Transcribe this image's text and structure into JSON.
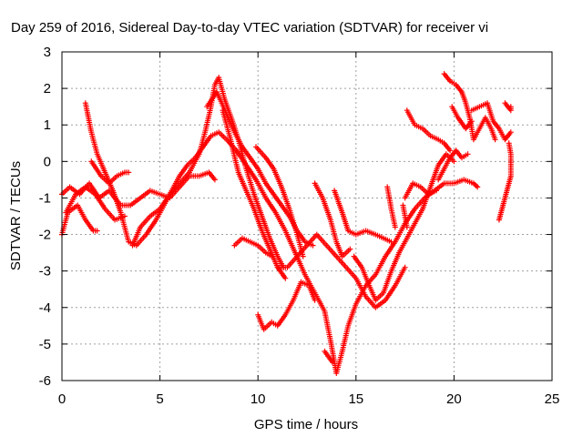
{
  "chart_data": {
    "type": "scatter",
    "title": "Day 259 of 2016, Sidereal Day-to-day VTEC variation (SDTVAR) for receiver vi",
    "xlabel": "GPS time / hours",
    "ylabel": "SDTVAR / TECUs",
    "xlim": [
      0,
      25
    ],
    "ylim": [
      -6,
      3
    ],
    "xticks": [
      0,
      5,
      10,
      15,
      20,
      25
    ],
    "yticks": [
      -6,
      -5,
      -4,
      -3,
      -2,
      -1,
      0,
      1,
      2,
      3
    ],
    "grid": true,
    "marker": "+",
    "color": "#ff0000",
    "tracks": [
      [
        [
          0.0,
          -2.0
        ],
        [
          0.3,
          -1.4
        ],
        [
          0.8,
          -1.2
        ],
        [
          1.2,
          -1.6
        ],
        [
          1.6,
          -1.9
        ],
        [
          1.8,
          -1.9
        ]
      ],
      [
        [
          0.0,
          -0.9
        ],
        [
          0.4,
          -0.7
        ],
        [
          0.9,
          -0.9
        ],
        [
          1.4,
          -0.6
        ],
        [
          1.9,
          -1.0
        ],
        [
          2.4,
          -0.8
        ],
        [
          3.0,
          -1.2
        ],
        [
          3.5,
          -1.2
        ],
        [
          4.0,
          -1.0
        ],
        [
          4.5,
          -0.8
        ],
        [
          5.0,
          -0.9
        ],
        [
          5.5,
          -1.0
        ],
        [
          6.0,
          -0.7
        ],
        [
          6.5,
          -0.4
        ],
        [
          7.0,
          -0.4
        ],
        [
          7.5,
          -0.3
        ],
        [
          7.8,
          -0.5
        ]
      ],
      [
        [
          1.2,
          1.6
        ],
        [
          1.5,
          0.8
        ],
        [
          1.8,
          0.2
        ],
        [
          2.2,
          -0.3
        ],
        [
          2.6,
          -0.8
        ],
        [
          3.0,
          -1.4
        ],
        [
          3.4,
          -2.2
        ],
        [
          3.8,
          -2.3
        ],
        [
          4.3,
          -2.0
        ],
        [
          4.8,
          -1.6
        ],
        [
          5.2,
          -1.2
        ],
        [
          5.6,
          -0.8
        ],
        [
          6.0,
          -0.4
        ],
        [
          6.4,
          -0.1
        ],
        [
          6.8,
          0.1
        ],
        [
          7.2,
          0.4
        ],
        [
          7.6,
          0.7
        ],
        [
          8.0,
          0.8
        ],
        [
          8.4,
          0.6
        ],
        [
          8.9,
          0.3
        ],
        [
          9.4,
          -0.1
        ],
        [
          9.9,
          -0.5
        ],
        [
          10.4,
          -1.0
        ],
        [
          10.9,
          -1.4
        ],
        [
          11.4,
          -1.9
        ],
        [
          11.9,
          -2.5
        ],
        [
          12.4,
          -3.1
        ],
        [
          12.9,
          -3.6
        ],
        [
          13.4,
          -4.1
        ],
        [
          13.7,
          -4.9
        ],
        [
          14.0,
          -5.8
        ],
        [
          14.3,
          -5.2
        ],
        [
          14.6,
          -4.5
        ],
        [
          15.0,
          -3.9
        ],
        [
          15.5,
          -3.4
        ],
        [
          16.0,
          -3.1
        ],
        [
          16.5,
          -2.6
        ],
        [
          17.0,
          -2.2
        ],
        [
          17.5,
          -1.7
        ],
        [
          18.0,
          -1.3
        ],
        [
          18.5,
          -1.0
        ],
        [
          19.0,
          -0.8
        ],
        [
          19.5,
          -0.6
        ],
        [
          20.0,
          -0.6
        ],
        [
          20.5,
          -0.5
        ],
        [
          21.0,
          -0.6
        ],
        [
          21.2,
          -0.7
        ]
      ],
      [
        [
          1.5,
          0.0
        ],
        [
          2.0,
          -0.4
        ],
        [
          2.4,
          -0.6
        ],
        [
          2.8,
          -0.4
        ],
        [
          3.2,
          -0.3
        ],
        [
          3.4,
          -0.3
        ]
      ],
      [
        [
          0.2,
          -1.4
        ],
        [
          0.7,
          -0.9
        ],
        [
          1.2,
          -0.7
        ],
        [
          1.7,
          -0.9
        ],
        [
          2.2,
          -1.3
        ],
        [
          2.7,
          -1.6
        ],
        [
          3.2,
          -1.5
        ]
      ],
      [
        [
          3.6,
          -2.3
        ],
        [
          4.0,
          -1.8
        ],
        [
          4.5,
          -1.5
        ],
        [
          5.0,
          -1.3
        ],
        [
          5.5,
          -0.9
        ],
        [
          6.0,
          -0.6
        ],
        [
          6.5,
          -0.3
        ],
        [
          7.0,
          0.2
        ],
        [
          7.3,
          0.8
        ],
        [
          7.6,
          1.5
        ],
        [
          7.8,
          2.1
        ],
        [
          8.0,
          2.3
        ],
        [
          8.3,
          1.7
        ],
        [
          8.7,
          1.1
        ],
        [
          9.0,
          0.6
        ],
        [
          9.4,
          -0.2
        ],
        [
          9.8,
          -0.9
        ],
        [
          10.2,
          -1.5
        ],
        [
          10.6,
          -2.1
        ],
        [
          11.0,
          -2.6
        ],
        [
          11.3,
          -2.9
        ]
      ],
      [
        [
          7.4,
          1.5
        ],
        [
          7.9,
          1.9
        ],
        [
          8.4,
          1.3
        ],
        [
          8.8,
          0.8
        ],
        [
          9.2,
          0.4
        ],
        [
          9.6,
          0.1
        ],
        [
          10.0,
          -0.2
        ],
        [
          10.4,
          -0.6
        ],
        [
          10.8,
          -0.9
        ],
        [
          11.2,
          -1.2
        ],
        [
          11.6,
          -1.5
        ],
        [
          12.0,
          -1.9
        ],
        [
          12.4,
          -2.2
        ],
        [
          12.8,
          -2.3
        ]
      ],
      [
        [
          8.2,
          1.4
        ],
        [
          8.6,
          0.6
        ],
        [
          9.0,
          -0.3
        ],
        [
          9.4,
          -0.8
        ],
        [
          9.8,
          -1.3
        ],
        [
          10.2,
          -1.9
        ],
        [
          10.6,
          -2.4
        ],
        [
          11.0,
          -2.9
        ],
        [
          11.4,
          -3.2
        ]
      ],
      [
        [
          8.8,
          -2.3
        ],
        [
          9.2,
          -2.1
        ],
        [
          9.6,
          -2.2
        ],
        [
          10.0,
          -2.3
        ],
        [
          10.4,
          -2.5
        ],
        [
          10.7,
          -2.6
        ]
      ],
      [
        [
          9.9,
          0.4
        ],
        [
          10.4,
          0.1
        ],
        [
          10.8,
          -0.2
        ],
        [
          11.2,
          -0.7
        ],
        [
          11.6,
          -1.3
        ],
        [
          12.0,
          -2.0
        ],
        [
          12.3,
          -2.6
        ]
      ],
      [
        [
          10.0,
          -4.2
        ],
        [
          10.3,
          -4.6
        ],
        [
          10.7,
          -4.4
        ],
        [
          11.0,
          -4.5
        ],
        [
          11.4,
          -4.2
        ],
        [
          11.8,
          -3.8
        ],
        [
          12.2,
          -3.3
        ],
        [
          12.6,
          -3.4
        ],
        [
          12.9,
          -3.8
        ]
      ],
      [
        [
          11.0,
          -2.9
        ],
        [
          11.5,
          -2.9
        ],
        [
          12.0,
          -2.6
        ],
        [
          12.5,
          -2.3
        ],
        [
          13.0,
          -2.0
        ],
        [
          13.5,
          -2.3
        ],
        [
          14.0,
          -2.6
        ],
        [
          14.5,
          -2.9
        ],
        [
          15.0,
          -3.2
        ],
        [
          15.5,
          -3.7
        ],
        [
          16.0,
          -4.0
        ],
        [
          16.5,
          -3.8
        ],
        [
          17.0,
          -3.4
        ],
        [
          17.5,
          -2.9
        ]
      ],
      [
        [
          12.9,
          -0.6
        ],
        [
          13.3,
          -1.0
        ],
        [
          13.7,
          -1.6
        ],
        [
          14.0,
          -2.2
        ],
        [
          14.3,
          -2.6
        ],
        [
          14.7,
          -2.4
        ]
      ],
      [
        [
          13.4,
          -5.2
        ],
        [
          13.8,
          -5.5
        ]
      ],
      [
        [
          13.9,
          -0.8
        ],
        [
          14.3,
          -1.4
        ],
        [
          14.6,
          -1.9
        ],
        [
          15.0,
          -2.0
        ],
        [
          15.5,
          -1.9
        ],
        [
          16.0,
          -2.0
        ],
        [
          16.4,
          -2.1
        ],
        [
          16.8,
          -2.2
        ]
      ],
      [
        [
          14.9,
          -2.6
        ],
        [
          15.3,
          -2.9
        ],
        [
          15.6,
          -3.3
        ],
        [
          16.0,
          -3.8
        ],
        [
          16.4,
          -3.6
        ],
        [
          16.8,
          -3.0
        ],
        [
          17.2,
          -2.5
        ],
        [
          17.6,
          -2.1
        ],
        [
          18.0,
          -1.7
        ],
        [
          18.4,
          -1.3
        ],
        [
          18.8,
          -0.7
        ],
        [
          19.2,
          -0.1
        ],
        [
          19.6,
          0.2
        ],
        [
          20.0,
          0.0
        ]
      ],
      [
        [
          16.6,
          -0.7
        ],
        [
          16.8,
          -1.3
        ],
        [
          17.0,
          -1.8
        ]
      ],
      [
        [
          17.4,
          -1.2
        ],
        [
          17.6,
          -1.8
        ]
      ],
      [
        [
          17.5,
          -1.0
        ],
        [
          17.9,
          -0.6
        ],
        [
          18.3,
          -0.7
        ],
        [
          18.7,
          -0.9
        ],
        [
          19.1,
          -0.8
        ]
      ],
      [
        [
          17.6,
          1.4
        ],
        [
          18.0,
          1.0
        ],
        [
          18.4,
          0.9
        ],
        [
          18.8,
          0.7
        ],
        [
          19.2,
          0.6
        ],
        [
          19.5,
          0.5
        ],
        [
          19.8,
          0.3
        ]
      ],
      [
        [
          19.2,
          -0.5
        ],
        [
          19.5,
          -0.2
        ],
        [
          19.8,
          0.1
        ],
        [
          20.1,
          0.3
        ],
        [
          20.4,
          0.1
        ],
        [
          20.7,
          0.2
        ]
      ],
      [
        [
          19.5,
          2.4
        ],
        [
          19.8,
          2.2
        ],
        [
          20.1,
          2.1
        ],
        [
          20.4,
          1.9
        ],
        [
          20.6,
          1.6
        ],
        [
          20.8,
          1.2
        ],
        [
          21.0,
          0.6
        ],
        [
          21.3,
          0.9
        ],
        [
          21.6,
          1.2
        ],
        [
          21.9,
          0.9
        ],
        [
          22.1,
          0.6
        ]
      ],
      [
        [
          19.9,
          1.5
        ],
        [
          20.2,
          1.2
        ],
        [
          20.6,
          0.9
        ],
        [
          20.9,
          1.1
        ]
      ],
      [
        [
          20.9,
          1.4
        ],
        [
          21.3,
          1.5
        ],
        [
          21.7,
          1.6
        ],
        [
          22.0,
          1.1
        ],
        [
          22.3,
          0.9
        ],
        [
          22.6,
          0.6
        ],
        [
          22.9,
          0.8
        ]
      ],
      [
        [
          22.3,
          -1.6
        ],
        [
          22.5,
          -1.2
        ],
        [
          22.7,
          -0.8
        ],
        [
          22.9,
          -0.4
        ],
        [
          22.9,
          0.2
        ],
        [
          22.8,
          0.5
        ]
      ],
      [
        [
          22.6,
          1.6
        ],
        [
          22.9,
          1.4
        ],
        [
          22.9,
          1.5
        ]
      ]
    ]
  }
}
